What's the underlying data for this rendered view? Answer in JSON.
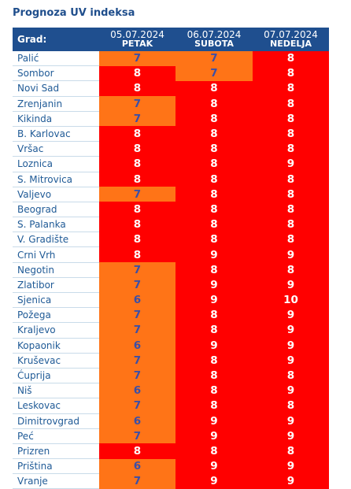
{
  "title": "Prognoza UV indeksa",
  "colors": {
    "header_bg": "#1f4f8f",
    "orange": "#ff7417",
    "red": "#ff0000",
    "city_text": "#1f5a96",
    "orange_text": "#3b4fa8"
  },
  "header": {
    "city_label": "Grad:",
    "days": [
      {
        "date": "05.07.2024",
        "day": "PETAK"
      },
      {
        "date": "06.07.2024",
        "day": "SUBOTA"
      },
      {
        "date": "07.07.2024",
        "day": "NEDELJA"
      }
    ]
  },
  "rows": [
    {
      "city": "Palić",
      "values": [
        "7",
        "7",
        "8"
      ]
    },
    {
      "city": "Sombor",
      "values": [
        "8",
        "7",
        "8"
      ]
    },
    {
      "city": "Novi Sad",
      "values": [
        "8",
        "8",
        "8"
      ]
    },
    {
      "city": "Zrenjanin",
      "values": [
        "7",
        "8",
        "8"
      ]
    },
    {
      "city": "Kikinda",
      "values": [
        "7",
        "8",
        "8"
      ]
    },
    {
      "city": "B. Karlovac",
      "values": [
        "8",
        "8",
        "8"
      ]
    },
    {
      "city": "Vršac",
      "values": [
        "8",
        "8",
        "8"
      ]
    },
    {
      "city": "Loznica",
      "values": [
        "8",
        "8",
        "9"
      ]
    },
    {
      "city": "S. Mitrovica",
      "values": [
        "8",
        "8",
        "8"
      ]
    },
    {
      "city": "Valjevo",
      "values": [
        "7",
        "8",
        "8"
      ]
    },
    {
      "city": "Beograd",
      "values": [
        "8",
        "8",
        "8"
      ]
    },
    {
      "city": "S. Palanka",
      "values": [
        "8",
        "8",
        "8"
      ]
    },
    {
      "city": "V. Gradište",
      "values": [
        "8",
        "8",
        "8"
      ]
    },
    {
      "city": "Crni Vrh",
      "values": [
        "8",
        "9",
        "9"
      ]
    },
    {
      "city": "Negotin",
      "values": [
        "7",
        "8",
        "8"
      ]
    },
    {
      "city": "Zlatibor",
      "values": [
        "7",
        "9",
        "9"
      ]
    },
    {
      "city": "Sjenica",
      "values": [
        "6",
        "9",
        "10"
      ]
    },
    {
      "city": "Požega",
      "values": [
        "7",
        "8",
        "9"
      ]
    },
    {
      "city": "Kraljevo",
      "values": [
        "7",
        "8",
        "9"
      ]
    },
    {
      "city": "Kopaonik",
      "values": [
        "6",
        "9",
        "9"
      ]
    },
    {
      "city": "Kruševac",
      "values": [
        "7",
        "8",
        "9"
      ]
    },
    {
      "city": "Ćuprija",
      "values": [
        "7",
        "8",
        "8"
      ]
    },
    {
      "city": "Niš",
      "values": [
        "6",
        "8",
        "9"
      ]
    },
    {
      "city": "Leskovac",
      "values": [
        "7",
        "8",
        "8"
      ]
    },
    {
      "city": "Dimitrovgrad",
      "values": [
        "6",
        "9",
        "9"
      ]
    },
    {
      "city": "Peć",
      "values": [
        "7",
        "9",
        "9"
      ]
    },
    {
      "city": "Prizren",
      "values": [
        "8",
        "8",
        "8"
      ]
    },
    {
      "city": "Priština",
      "values": [
        "6",
        "9",
        "9"
      ]
    },
    {
      "city": "Vranje",
      "values": [
        "7",
        "9",
        "9"
      ]
    }
  ]
}
